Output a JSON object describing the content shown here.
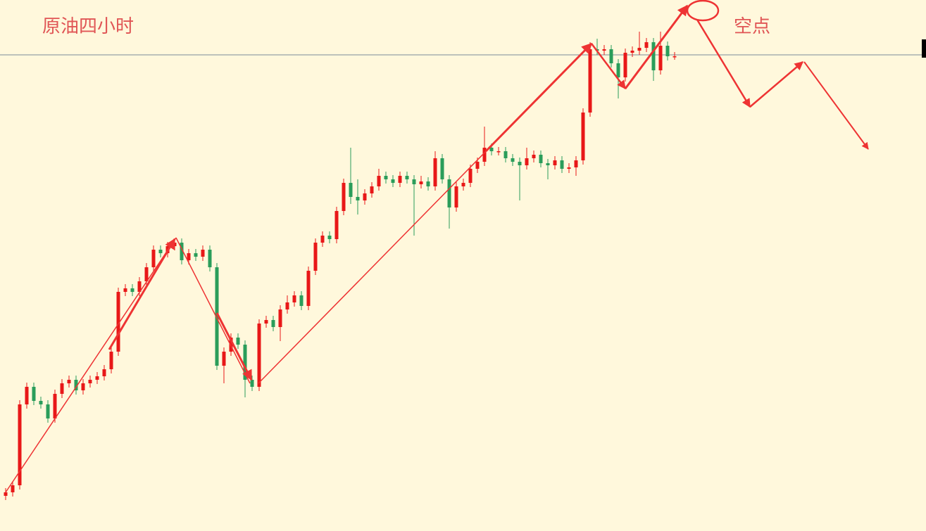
{
  "chart_data": {
    "type": "candlestick",
    "title": "原油四小时",
    "annotation": "空点",
    "up_color": "#e81818",
    "down_color": "#2a9d5a",
    "ylim": [
      0,
      755
    ],
    "price_line": 677,
    "open": [
      50,
      55,
      65,
      180,
      205,
      185,
      180,
      160,
      195,
      210,
      215,
      200,
      210,
      215,
      220,
      230,
      255,
      340,
      345,
      340,
      355,
      375,
      400,
      395,
      405,
      410,
      385,
      395,
      390,
      400,
      375,
      235,
      255,
      275,
      265,
      215,
      205,
      295,
      300,
      290,
      315,
      325,
      335,
      320,
      370,
      410,
      420,
      415,
      455,
      495,
      475,
      470,
      480,
      490,
      505,
      500,
      495,
      505,
      500,
      493,
      497,
      490,
      530,
      500,
      460,
      490,
      495,
      515,
      525,
      545,
      540,
      540,
      530,
      525,
      520,
      530,
      535,
      523,
      520,
      527,
      515,
      517,
      527,
      595,
      685,
      683,
      685,
      665,
      645,
      680,
      683,
      687,
      695,
      655,
      690,
      675
    ],
    "close": [
      55,
      65,
      180,
      205,
      185,
      180,
      160,
      195,
      210,
      215,
      200,
      210,
      215,
      220,
      230,
      255,
      340,
      345,
      340,
      355,
      375,
      400,
      395,
      405,
      410,
      385,
      395,
      390,
      400,
      375,
      235,
      255,
      275,
      265,
      215,
      205,
      295,
      300,
      290,
      315,
      325,
      335,
      320,
      370,
      410,
      420,
      415,
      455,
      495,
      475,
      470,
      480,
      490,
      505,
      500,
      495,
      505,
      500,
      493,
      497,
      490,
      530,
      500,
      460,
      490,
      495,
      515,
      525,
      545,
      540,
      540,
      530,
      525,
      520,
      530,
      535,
      523,
      520,
      527,
      515,
      517,
      527,
      595,
      685,
      683,
      685,
      665,
      645,
      680,
      683,
      687,
      695,
      655,
      690,
      675,
      675
    ],
    "high": [
      61,
      71,
      186,
      211,
      211,
      191,
      186,
      201,
      216,
      221,
      221,
      216,
      221,
      226,
      236,
      261,
      346,
      351,
      351,
      361,
      381,
      406,
      406,
      411,
      416,
      416,
      401,
      401,
      406,
      406,
      381,
      261,
      281,
      281,
      271,
      221,
      301,
      306,
      306,
      321,
      335,
      341,
      341,
      376,
      416,
      426,
      426,
      461,
      501,
      545,
      500,
      486,
      496,
      515,
      511,
      506,
      511,
      511,
      506,
      505,
      503,
      540,
      536,
      506,
      496,
      501,
      521,
      531,
      575,
      551,
      546,
      546,
      536,
      531,
      545,
      541,
      541,
      529,
      533,
      533,
      523,
      533,
      601,
      695,
      700,
      691,
      691,
      671,
      686,
      689,
      710,
      701,
      701,
      710,
      696,
      681
    ],
    "low": [
      44,
      49,
      59,
      174,
      179,
      174,
      154,
      154,
      189,
      204,
      194,
      194,
      204,
      209,
      214,
      224,
      249,
      334,
      334,
      334,
      349,
      369,
      389,
      389,
      399,
      379,
      379,
      384,
      384,
      369,
      229,
      210,
      249,
      259,
      190,
      199,
      199,
      289,
      284,
      270,
      309,
      319,
      314,
      314,
      364,
      404,
      409,
      409,
      449,
      465,
      450,
      464,
      474,
      484,
      494,
      489,
      489,
      494,
      420,
      487,
      484,
      484,
      494,
      430,
      454,
      484,
      489,
      509,
      519,
      534,
      534,
      524,
      519,
      470,
      514,
      524,
      517,
      500,
      514,
      509,
      509,
      505,
      521,
      589,
      677,
      677,
      659,
      615,
      639,
      674,
      677,
      681,
      640,
      649,
      669,
      670
    ]
  }
}
